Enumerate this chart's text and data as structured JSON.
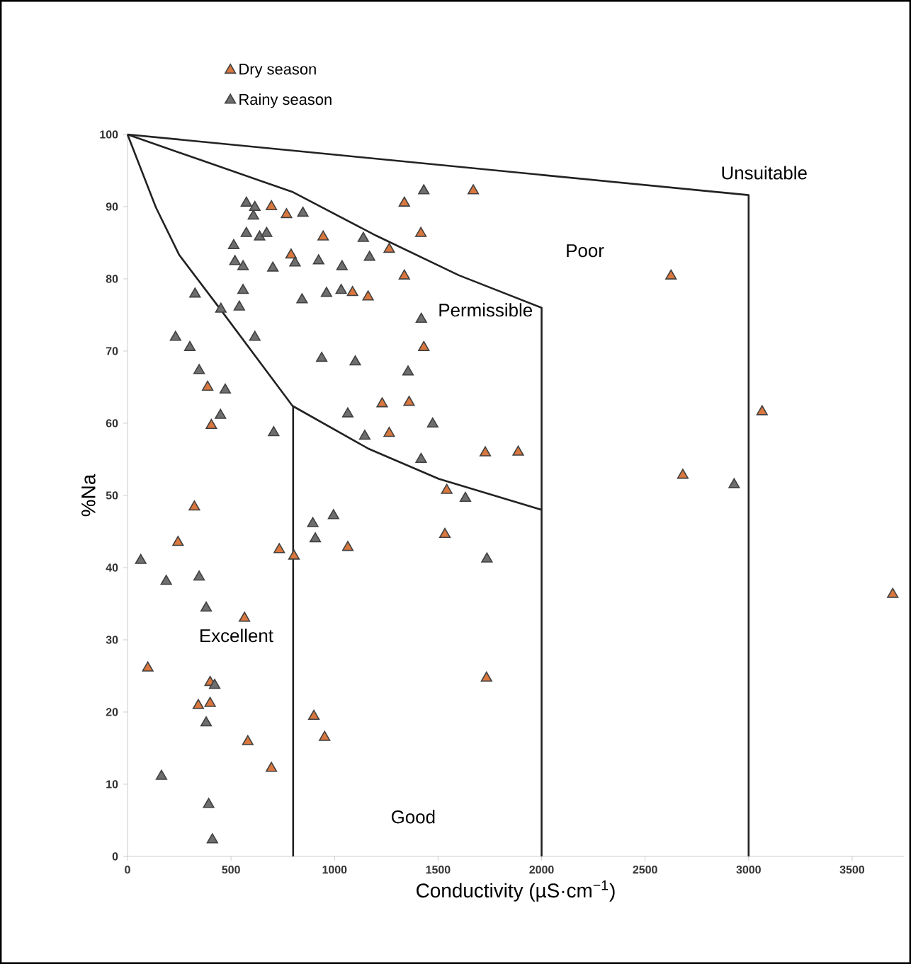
{
  "chart_data": {
    "type": "scatter",
    "xlabel": "Conductivity (µS·cm$^{−1}$)",
    "ylabel": "%Na",
    "xlim": [
      0,
      3750
    ],
    "ylim": [
      0,
      100
    ],
    "xticks": [
      0,
      500,
      1000,
      1500,
      2000,
      2500,
      3000,
      3500
    ],
    "yticks": [
      0,
      10,
      20,
      30,
      40,
      50,
      60,
      70,
      80,
      90,
      100
    ],
    "legend": "top left",
    "marker": "triangle",
    "series": [
      {
        "name": "Dry season",
        "color": "#d9773e",
        "x": [
          695,
          768,
          790,
          1337,
          1670,
          945,
          1417,
          1264,
          1337,
          1087,
          1162,
          1431,
          387,
          405,
          1230,
          1360,
          1264,
          1728,
          2625,
          3065,
          1887,
          2682,
          3696,
          1734,
          323,
          244,
          733,
          804,
          1064,
          1533,
          1542,
          565,
          98,
          342,
          399,
          399,
          581,
          695,
          900,
          952
        ],
        "values": [
          90.0,
          88.9,
          83.3,
          90.5,
          92.2,
          85.8,
          86.3,
          84.1,
          80.4,
          78.1,
          77.5,
          70.5,
          65.0,
          59.7,
          62.7,
          62.9,
          58.6,
          55.9,
          80.4,
          61.6,
          56.0,
          52.8,
          36.3,
          24.7,
          48.4,
          43.5,
          42.5,
          41.6,
          42.8,
          44.6,
          50.7,
          33.0,
          26.1,
          20.9,
          21.2,
          24.1,
          15.9,
          12.2,
          19.4,
          16.5
        ]
      },
      {
        "name": "Rainy season",
        "color": "#6e6e6e",
        "x": [
          574,
          615,
          608,
          847,
          1431,
          1139,
          1169,
          513,
          574,
          638,
          672,
          519,
          558,
          702,
          809,
          923,
          1036,
          843,
          961,
          1032,
          326,
          451,
          540,
          558,
          1419,
          232,
          301,
          346,
          472,
          449,
          615,
          706,
          938,
          1100,
          1355,
          1064,
          1146,
          1474,
          1418,
          2930,
          1736,
          1632,
          64,
          187,
          346,
          380,
          895,
          995,
          907,
          421,
          380,
          164,
          392,
          410
        ],
        "values": [
          90.5,
          89.9,
          88.7,
          89.1,
          92.2,
          85.6,
          83.0,
          84.6,
          86.3,
          85.8,
          86.3,
          82.4,
          81.7,
          81.5,
          82.2,
          82.5,
          81.7,
          77.1,
          78.0,
          78.4,
          77.9,
          75.8,
          76.1,
          78.4,
          74.4,
          71.9,
          70.5,
          67.3,
          64.6,
          61.1,
          71.9,
          58.7,
          69.0,
          68.5,
          67.1,
          61.3,
          58.2,
          59.9,
          55.0,
          51.5,
          41.2,
          49.6,
          41.0,
          38.1,
          38.7,
          34.4,
          46.1,
          47.2,
          44.0,
          23.7,
          18.5,
          11.1,
          7.2,
          2.3
        ]
      },
      {
        "type": "line",
        "marker": "none",
        "color": "#222222",
        "x": [
          0,
          1000,
          2000,
          3000,
          3000
        ],
        "values": [
          100,
          97.2,
          94.4,
          91.6,
          0
        ]
      },
      {
        "type": "line",
        "marker": "none",
        "color": "#222222",
        "x": [
          0,
          400,
          800,
          1200,
          1600,
          2000,
          2000
        ],
        "values": [
          100,
          96,
          92,
          86,
          80.5,
          76,
          0
        ]
      },
      {
        "type": "line",
        "marker": "none",
        "color": "#222222",
        "x": [
          0,
          137,
          250,
          456,
          797,
          1162,
          1503,
          2000
        ],
        "values": [
          100,
          89.9,
          83.3,
          75.5,
          62.4,
          56.5,
          52.3,
          48
        ]
      },
      {
        "type": "line",
        "marker": "none",
        "color": "#222222",
        "x": [
          800,
          800
        ],
        "values": [
          62.4,
          0
        ]
      }
    ],
    "annotations": [
      "Excellent",
      "Good",
      "Permissible",
      "Poor",
      "Unsuitable"
    ]
  }
}
